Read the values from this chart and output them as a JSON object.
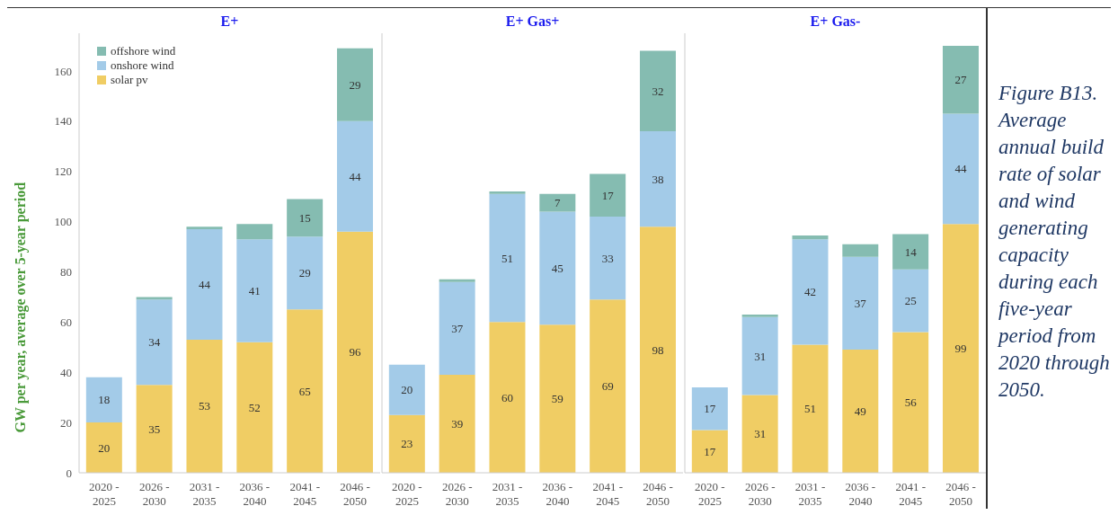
{
  "chart_data": [
    {
      "type": "bar",
      "stacked": true,
      "title": "E+",
      "ylabel": "GW per year, average over 5-year period",
      "categories": [
        "2020 - 2025",
        "2026 - 2030",
        "2031 - 2035",
        "2036 - 2040",
        "2041 - 2045",
        "2046 - 2050"
      ],
      "ylim": [
        0,
        175
      ],
      "yticks": [
        0,
        20,
        40,
        60,
        80,
        100,
        120,
        140,
        160
      ],
      "legend": "top left",
      "series": [
        {
          "name": "solar pv",
          "color": "#f0cd64",
          "values": [
            20,
            35,
            53,
            52,
            65,
            96
          ],
          "value_labels": [
            "20",
            "35",
            "53",
            "52",
            "65",
            "96"
          ]
        },
        {
          "name": "onshore wind",
          "color": "#a3cbe8",
          "values": [
            18,
            34,
            44,
            41,
            29,
            44
          ],
          "value_labels": [
            "18",
            "34",
            "44",
            "41",
            "29",
            "44"
          ]
        },
        {
          "name": "offshore wind",
          "color": "#85bcb1",
          "values": [
            0,
            1,
            1,
            6,
            15,
            29
          ],
          "value_labels": [
            null,
            null,
            null,
            null,
            "15",
            "29"
          ]
        }
      ]
    },
    {
      "type": "bar",
      "stacked": true,
      "title": "E+ Gas+",
      "tick_labels": "x",
      "categories": [
        "2020 - 2025",
        "2026 - 2030",
        "2031 - 2035",
        "2036 - 2040",
        "2041 - 2045",
        "2046 - 2050"
      ],
      "ylim": [
        0,
        175
      ],
      "yticks": [
        0,
        20,
        40,
        60,
        80,
        100,
        120,
        140,
        160
      ],
      "series": [
        {
          "color": "#f0cd64",
          "values": [
            23,
            39,
            60,
            59,
            69,
            98
          ],
          "value_labels": [
            "23",
            "39",
            "60",
            "59",
            "69",
            "98"
          ]
        },
        {
          "color": "#a3cbe8",
          "values": [
            20,
            37,
            51,
            45,
            33,
            38
          ],
          "value_labels": [
            "20",
            "37",
            "51",
            "45",
            "33",
            "38"
          ]
        },
        {
          "color": "#85bcb1",
          "values": [
            0,
            1,
            1,
            7,
            17,
            32
          ],
          "value_labels": [
            null,
            null,
            null,
            "7",
            "17",
            "32"
          ]
        }
      ]
    },
    {
      "type": "bar",
      "stacked": true,
      "title": "E+ Gas-",
      "tick_labels": "x",
      "categories": [
        "2020 - 2025",
        "2026 - 2030",
        "2031 - 2035",
        "2036 - 2040",
        "2041 - 2045",
        "2046 - 2050"
      ],
      "ylim": [
        0,
        175
      ],
      "yticks": [
        0,
        20,
        40,
        60,
        80,
        100,
        120,
        140,
        160
      ],
      "annotations": [
        "Figure B13. Average annual build rate of solar and wind generating capacity during each five-year period from 2020 through 2050."
      ],
      "series": [
        {
          "color": "#f0cd64",
          "values": [
            17,
            31,
            51,
            49,
            56,
            99
          ],
          "value_labels": [
            "17",
            "31",
            "51",
            "49",
            "56",
            "99"
          ]
        },
        {
          "color": "#a3cbe8",
          "values": [
            17,
            31,
            42,
            37,
            25,
            44
          ],
          "value_labels": [
            "17",
            "31",
            "42",
            "37",
            "25",
            "44"
          ]
        },
        {
          "color": "#85bcb1",
          "values": [
            0,
            1,
            1.5,
            5,
            14,
            27
          ],
          "value_labels": [
            null,
            null,
            null,
            null,
            "14",
            "27"
          ]
        }
      ]
    }
  ]
}
